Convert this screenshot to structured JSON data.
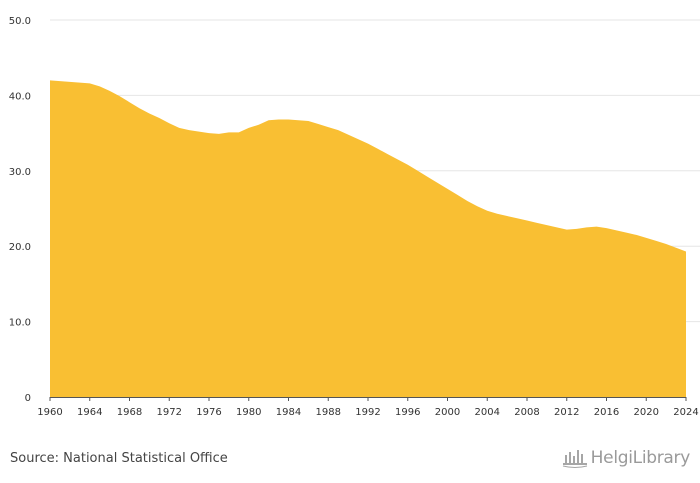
{
  "chart_data": {
    "type": "area",
    "title": "",
    "xlabel": "",
    "ylabel": "",
    "x": [
      1960,
      1961,
      1962,
      1963,
      1964,
      1965,
      1966,
      1967,
      1968,
      1969,
      1970,
      1971,
      1972,
      1973,
      1974,
      1975,
      1976,
      1977,
      1978,
      1979,
      1980,
      1981,
      1982,
      1983,
      1984,
      1985,
      1986,
      1987,
      1988,
      1989,
      1990,
      1991,
      1992,
      1993,
      1994,
      1995,
      1996,
      1997,
      1998,
      1999,
      2000,
      2001,
      2002,
      2003,
      2004,
      2005,
      2006,
      2007,
      2008,
      2009,
      2010,
      2011,
      2012,
      2013,
      2014,
      2015,
      2016,
      2017,
      2018,
      2019,
      2020,
      2021,
      2022,
      2023,
      2024
    ],
    "values": [
      42.0,
      41.9,
      41.8,
      41.7,
      41.6,
      41.2,
      40.6,
      39.9,
      39.1,
      38.3,
      37.6,
      37.0,
      36.3,
      35.7,
      35.4,
      35.2,
      35.0,
      34.9,
      35.1,
      35.1,
      35.7,
      36.1,
      36.7,
      36.8,
      36.8,
      36.7,
      36.6,
      36.2,
      35.8,
      35.4,
      34.8,
      34.2,
      33.6,
      32.9,
      32.2,
      31.5,
      30.8,
      30.0,
      29.2,
      28.4,
      27.6,
      26.8,
      26.0,
      25.3,
      24.7,
      24.3,
      24.0,
      23.7,
      23.4,
      23.1,
      22.8,
      22.5,
      22.2,
      22.3,
      22.5,
      22.6,
      22.4,
      22.1,
      21.8,
      21.5,
      21.1,
      20.7,
      20.3,
      19.8,
      19.3
    ],
    "ylim": [
      0,
      50
    ],
    "yticks": [
      "0",
      "10.0",
      "20.0",
      "30.0",
      "40.0",
      "50.0"
    ],
    "xticks": [
      "1960",
      "1964",
      "1968",
      "1972",
      "1976",
      "1980",
      "1984",
      "1988",
      "1992",
      "1996",
      "2000",
      "2004",
      "2008",
      "2012",
      "2016",
      "2020",
      "2024"
    ],
    "grid": true,
    "legend": "none",
    "color": "#f9bf33"
  },
  "footer": {
    "source": "Source: National Statistical Office",
    "brand": "HelgiLibrary"
  }
}
